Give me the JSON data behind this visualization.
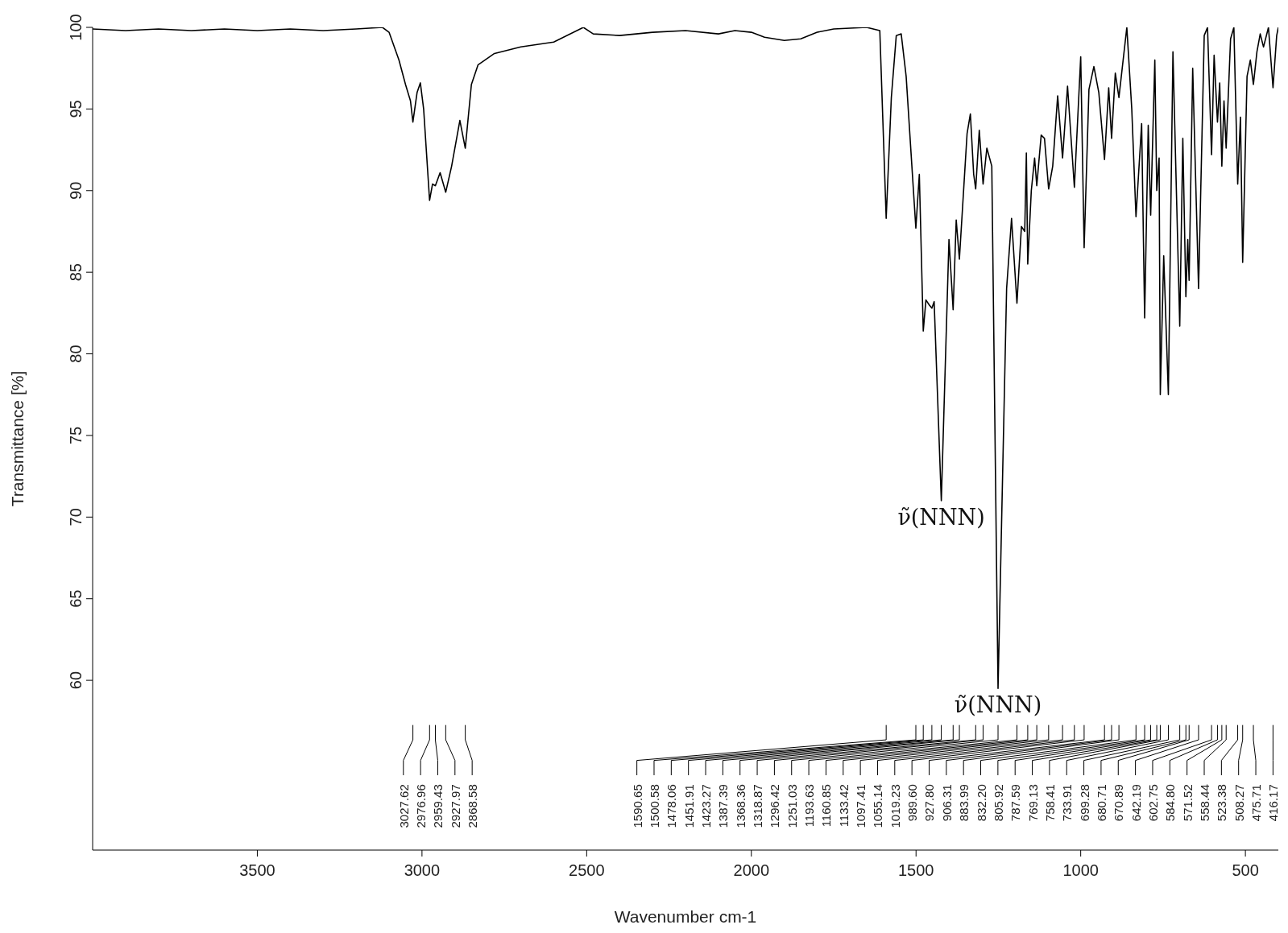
{
  "chart_data": {
    "type": "line",
    "xlabel": "Wavenumber cm-1",
    "ylabel": "Transmittance [%]",
    "xlim": [
      4000,
      400
    ],
    "ylim": [
      49.6,
      100
    ],
    "xticks": [
      3500,
      3000,
      2500,
      2000,
      1500,
      1000,
      500
    ],
    "yticks": [
      60,
      65,
      70,
      75,
      80,
      85,
      90,
      95,
      100
    ],
    "grid": false,
    "legend": false,
    "marker": "none",
    "line_style": "solid",
    "x": [
      4000,
      3900,
      3800,
      3700,
      3600,
      3500,
      3400,
      3300,
      3200,
      3120,
      3100,
      3070,
      3050,
      3035,
      3027.62,
      3015,
      3005,
      2995,
      2976.96,
      2968,
      2959.43,
      2945,
      2927.97,
      2910,
      2885,
      2868.58,
      2850,
      2830,
      2780,
      2700,
      2600,
      2510,
      2480,
      2400,
      2300,
      2200,
      2100,
      2050,
      2000,
      1960,
      1900,
      1850,
      1800,
      1750,
      1650,
      1610,
      1590.65,
      1575,
      1560,
      1545,
      1530,
      1500.58,
      1490,
      1478.06,
      1470,
      1460,
      1451.91,
      1445,
      1423.27,
      1400,
      1387.39,
      1378,
      1368.36,
      1345,
      1335,
      1325,
      1318.87,
      1308,
      1296.42,
      1285,
      1270,
      1251.03,
      1225,
      1210,
      1193.63,
      1180,
      1170,
      1165,
      1160.85,
      1150,
      1140,
      1133.42,
      1120,
      1110,
      1097.41,
      1085,
      1070,
      1055.14,
      1040,
      1019.23,
      1000,
      989.6,
      975,
      960,
      945,
      927.8,
      915,
      906.31,
      895,
      883.99,
      860,
      845,
      832.2,
      815,
      805.92,
      795,
      787.59,
      775,
      769.13,
      762,
      758.41,
      748,
      733.91,
      720,
      699.28,
      690,
      680.71,
      675,
      670.89,
      660,
      642.19,
      625,
      615,
      602.75,
      595,
      584.8,
      578,
      571.52,
      565,
      558.44,
      545,
      535,
      523.38,
      515,
      508.27,
      495,
      485,
      475.71,
      465,
      455,
      445,
      430,
      416.17,
      405,
      400
    ],
    "series": [
      {
        "color": "#000000",
        "values": [
          99.9,
          99.8,
          99.9,
          99.8,
          99.9,
          99.8,
          99.9,
          99.8,
          99.9,
          100,
          99.7,
          98,
          96.5,
          95.5,
          94.2,
          96,
          96.6,
          95,
          89.4,
          90.4,
          90.3,
          91.1,
          89.9,
          91.5,
          94.3,
          92.6,
          96.5,
          97.7,
          98.4,
          98.8,
          99.1,
          100,
          99.6,
          99.5,
          99.7,
          99.8,
          99.6,
          99.8,
          99.7,
          99.4,
          99.2,
          99.3,
          99.7,
          99.9,
          100,
          99.8,
          88.3,
          95.7,
          99.5,
          99.6,
          97,
          87.7,
          91,
          81.4,
          83.3,
          83,
          82.8,
          83.2,
          71,
          87,
          82.7,
          88.2,
          85.8,
          93.5,
          94.7,
          91,
          90.1,
          93.7,
          90.4,
          92.6,
          91.5,
          59.5,
          84,
          88.3,
          83.1,
          87.8,
          87.5,
          92.3,
          85.5,
          90,
          92,
          90.3,
          93.4,
          93.2,
          90.1,
          91.5,
          95.8,
          92,
          96.4,
          90.2,
          98.2,
          86.5,
          96.2,
          97.6,
          96,
          91.9,
          96.3,
          93.2,
          97.2,
          95.7,
          100,
          95,
          88.4,
          94.1,
          82.2,
          94,
          88.5,
          98,
          90,
          92,
          77.5,
          86,
          77.5,
          98.5,
          81.7,
          93.2,
          83.5,
          87,
          84.5,
          97.5,
          84,
          99.5,
          100,
          92.2,
          98.3,
          94.2,
          96.6,
          91.5,
          95.5,
          92.6,
          99.3,
          100,
          90.4,
          94.5,
          85.6,
          97,
          98,
          96.5,
          98.5,
          99.6,
          98.8,
          100,
          96.3,
          99.5,
          100
        ]
      }
    ],
    "annotations": [
      {
        "text": "ν̃(NNN)",
        "x": 1423.27,
        "y": 71
      },
      {
        "text": "ν̃(NNN)",
        "x": 1251.03,
        "y": 59.5
      },
      "3027.62",
      "2976.96",
      "2959.43",
      "2927.97",
      "2868.58",
      "1590.65",
      "1500.58",
      "1478.06",
      "1451.91",
      "1423.27",
      "1387.39",
      "1368.36",
      "1318.87",
      "1296.42",
      "1251.03",
      "1193.63",
      "1160.85",
      "1133.42",
      "1097.41",
      "1055.14",
      "1019.23",
      "989.60",
      "927.80",
      "906.31",
      "883.99",
      "832.20",
      "805.92",
      "787.59",
      "769.13",
      "758.41",
      "733.91",
      "699.28",
      "680.71",
      "670.89",
      "642.19",
      "602.75",
      "584.80",
      "571.52",
      "558.44",
      "523.38",
      "508.27",
      "475.71",
      "416.17"
    ]
  }
}
